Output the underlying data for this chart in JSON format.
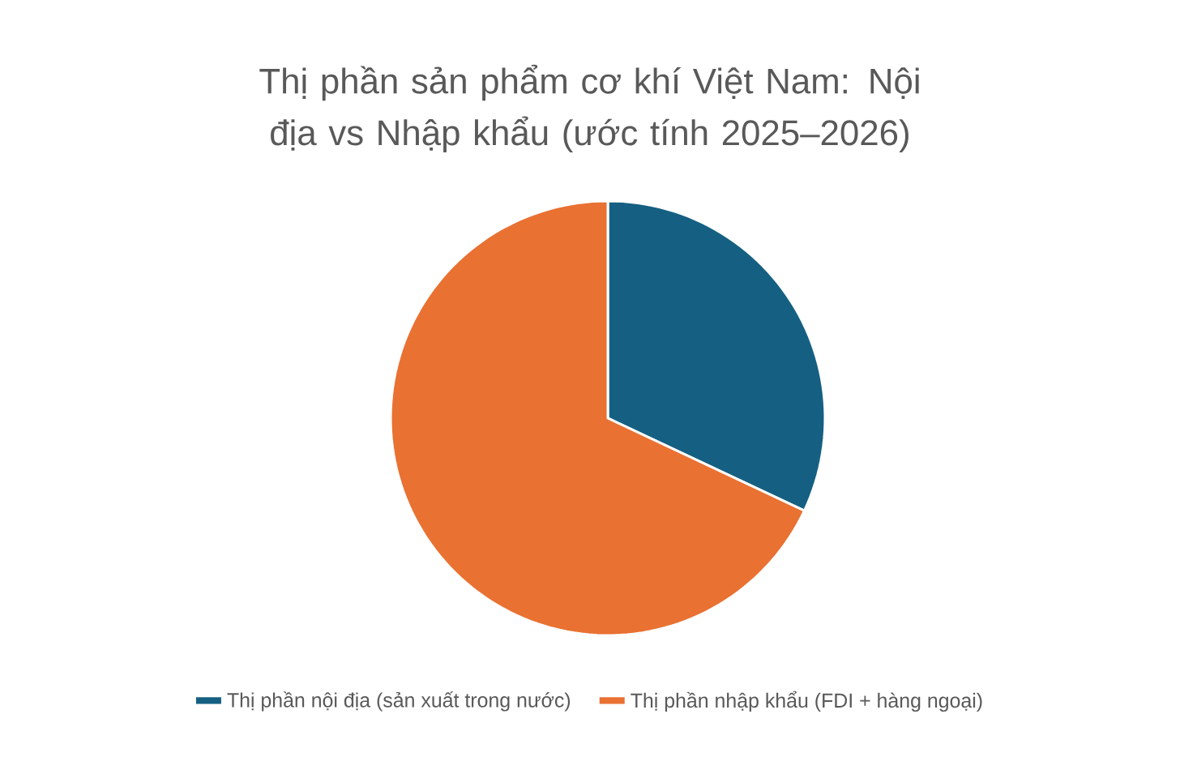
{
  "chart_data": {
    "type": "pie",
    "title": "Thị phần sản phẩm cơ khí Việt Nam: Nội địa vs Nhập khẩu (ước tính 2025–2026)",
    "categories": [
      "Thị phần nội địa (sản xuất trong nước)",
      "Thị phần nhập khẩu (FDI + hàng ngoại)"
    ],
    "values": [
      32,
      68
    ],
    "colors": [
      "#156082",
      "#e97132"
    ],
    "legend": "bottom"
  }
}
